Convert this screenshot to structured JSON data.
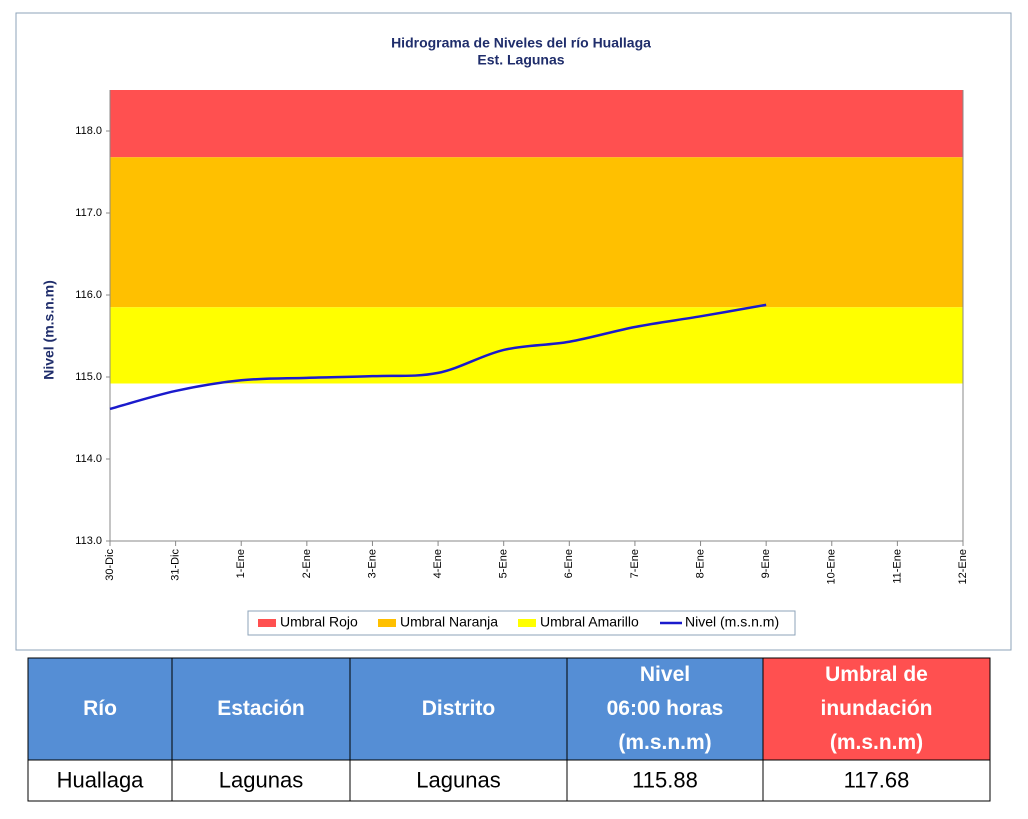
{
  "chart_data": {
    "type": "area_line",
    "title": "Hidrograma de Niveles del río Huallaga",
    "subtitle": "Est. Lagunas",
    "y_label": "Nivel (m.s.n.m)",
    "categories": [
      "30-Dic",
      "31-Dic",
      "1-Ene",
      "2-Ene",
      "3-Ene",
      "4-Ene",
      "5-Ene",
      "6-Ene",
      "7-Ene",
      "8-Ene",
      "9-Ene",
      "10-Ene",
      "11-Ene",
      "12-Ene"
    ],
    "ylim": [
      113,
      118.5
    ],
    "yticks": [
      {
        "value": 113,
        "label": "113.0"
      },
      {
        "value": 114,
        "label": "114.0"
      },
      {
        "value": 115,
        "label": "115.0"
      },
      {
        "value": 116,
        "label": "116.0"
      },
      {
        "value": 117,
        "label": "117.0"
      },
      {
        "value": 118,
        "label": "118.0"
      }
    ],
    "series": [
      {
        "name": "Umbral Rojo",
        "color": "#ff5050",
        "kind": "band",
        "values": [
          117.68,
          117.68,
          117.68,
          117.68,
          117.68,
          117.68,
          117.68,
          117.68,
          117.68,
          117.68,
          117.68,
          117.68,
          117.68,
          117.68
        ]
      },
      {
        "name": "Umbral Naranja",
        "color": "#ffc000",
        "kind": "band",
        "values": [
          115.85,
          115.85,
          115.85,
          115.85,
          115.85,
          115.85,
          115.85,
          115.85,
          115.85,
          115.85,
          115.85,
          115.85,
          115.85,
          115.85
        ]
      },
      {
        "name": "Umbral Amarillo",
        "color": "#ffff00",
        "kind": "band",
        "values": [
          114.92,
          114.92,
          114.92,
          114.92,
          114.92,
          114.92,
          114.92,
          114.92,
          114.92,
          114.92,
          114.92,
          114.92,
          114.92,
          114.92
        ]
      },
      {
        "name": "Nivel (m.s.n.m)",
        "color": "#1a1acc",
        "kind": "line",
        "values": [
          114.61,
          114.83,
          114.96,
          114.99,
          115.01,
          115.05,
          115.33,
          115.43,
          115.61,
          115.74,
          115.88,
          null,
          null,
          null
        ]
      }
    ]
  },
  "table": {
    "header": [
      "Río",
      "Estación",
      "Distrito",
      "Nivel\n06:00 horas\n(m.s.n.m)",
      "Umbral de\ninundación\n(m.s.n.m)"
    ],
    "rows": [
      [
        "Huallaga",
        "Lagunas",
        "Lagunas",
        115.88,
        117.68
      ]
    ]
  }
}
